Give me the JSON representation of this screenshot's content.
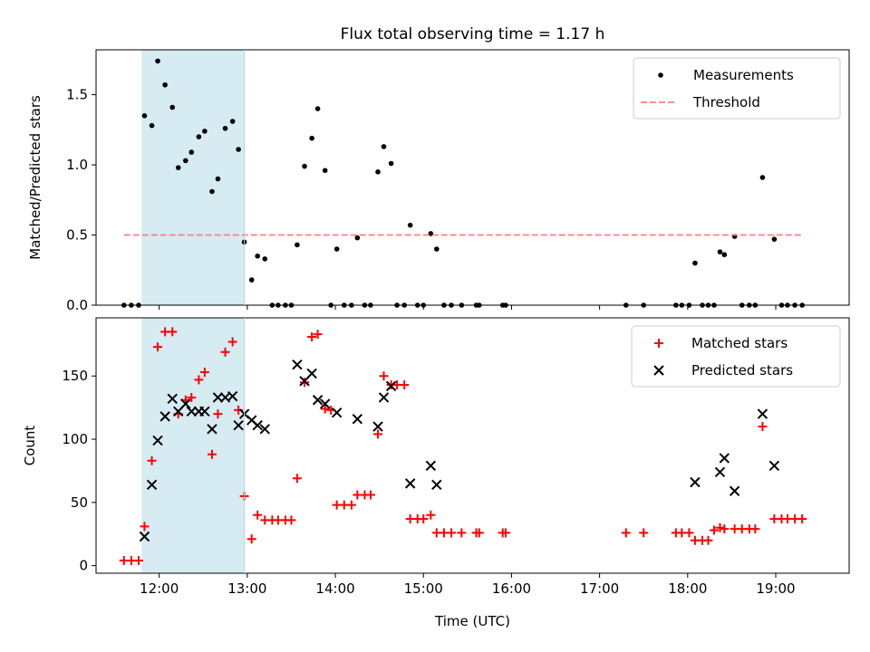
{
  "title": "Flux total observing time = 1.17 h",
  "xlabel": "Time (UTC)",
  "x_ticks": [
    "12:00",
    "13:00",
    "14:00",
    "15:00",
    "16:00",
    "17:00",
    "18:00",
    "19:00"
  ],
  "colors": {
    "measurements": "#000000",
    "threshold": "#ff7f7f",
    "matched": "#ff0000",
    "predicted": "#000000",
    "span": "#add8e6"
  },
  "chart_data": [
    {
      "type": "scatter",
      "ylabel": "Matched/Predicted stars",
      "xlim": [
        "11:17",
        "19:50"
      ],
      "ylim": [
        0,
        1.82
      ],
      "yticks": [
        "0.0",
        "0.5",
        "1.0",
        "1.5"
      ],
      "highlight_span": [
        "11:48",
        "12:58"
      ],
      "legend": {
        "position": "upper right",
        "entries": [
          "Measurements",
          "Threshold"
        ]
      },
      "series": [
        {
          "name": "Measurements",
          "marker": "dot",
          "points": [
            [
              "11:36",
              0
            ],
            [
              "11:41",
              0
            ],
            [
              "11:46",
              0
            ],
            [
              "11:50",
              1.35
            ],
            [
              "11:55",
              1.28
            ],
            [
              "11:59",
              1.74
            ],
            [
              "12:04",
              1.57
            ],
            [
              "12:09",
              1.41
            ],
            [
              "12:13",
              0.98
            ],
            [
              "12:18",
              1.03
            ],
            [
              "12:22",
              1.09
            ],
            [
              "12:27",
              1.2
            ],
            [
              "12:31",
              1.24
            ],
            [
              "12:36",
              0.81
            ],
            [
              "12:40",
              0.9
            ],
            [
              "12:45",
              1.26
            ],
            [
              "12:50",
              1.31
            ],
            [
              "12:54",
              1.11
            ],
            [
              "12:58",
              0.45
            ],
            [
              "13:03",
              0.18
            ],
            [
              "13:07",
              0.35
            ],
            [
              "13:12",
              0.33
            ],
            [
              "13:17",
              0
            ],
            [
              "13:21",
              0
            ],
            [
              "13:26",
              0
            ],
            [
              "13:30",
              0
            ],
            [
              "13:34",
              0.43
            ],
            [
              "13:39",
              0.99
            ],
            [
              "13:44",
              1.19
            ],
            [
              "13:48",
              1.4
            ],
            [
              "13:53",
              0.96
            ],
            [
              "13:57",
              0
            ],
            [
              "14:01",
              0.4
            ],
            [
              "14:06",
              0
            ],
            [
              "14:11",
              0
            ],
            [
              "14:15",
              0.48
            ],
            [
              "14:20",
              0
            ],
            [
              "14:24",
              0
            ],
            [
              "14:29",
              0.95
            ],
            [
              "14:33",
              1.13
            ],
            [
              "14:38",
              1.01
            ],
            [
              "14:42",
              0
            ],
            [
              "14:47",
              0
            ],
            [
              "14:51",
              0.57
            ],
            [
              "14:56",
              0
            ],
            [
              "15:00",
              0
            ],
            [
              "15:05",
              0.51
            ],
            [
              "15:09",
              0.4
            ],
            [
              "15:14",
              0
            ],
            [
              "15:19",
              0
            ],
            [
              "15:26",
              0
            ],
            [
              "15:36",
              0
            ],
            [
              "15:38",
              0
            ],
            [
              "15:54",
              0
            ],
            [
              "15:56",
              0
            ],
            [
              "17:18",
              0
            ],
            [
              "17:30",
              0
            ],
            [
              "17:52",
              0
            ],
            [
              "17:56",
              0
            ],
            [
              "18:01",
              0
            ],
            [
              "18:05",
              0.3
            ],
            [
              "18:10",
              0
            ],
            [
              "18:14",
              0
            ],
            [
              "18:18",
              0
            ],
            [
              "18:22",
              0.38
            ],
            [
              "18:25",
              0.36
            ],
            [
              "18:32",
              0.49
            ],
            [
              "18:37",
              0
            ],
            [
              "18:42",
              0
            ],
            [
              "18:46",
              0
            ],
            [
              "18:51",
              0.91
            ],
            [
              "18:59",
              0.47
            ],
            [
              "19:04",
              0
            ],
            [
              "19:08",
              0
            ],
            [
              "19:13",
              0
            ],
            [
              "19:18",
              0
            ]
          ]
        },
        {
          "name": "Threshold",
          "marker": "dashed-line",
          "points": [
            [
              "11:36",
              0.5
            ],
            [
              "19:18",
              0.5
            ]
          ]
        }
      ]
    },
    {
      "type": "scatter",
      "ylabel": "Count",
      "xlim": [
        "11:17",
        "19:50"
      ],
      "ylim": [
        -6,
        196
      ],
      "yticks": [
        "0",
        "50",
        "100",
        "150"
      ],
      "highlight_span": [
        "11:48",
        "12:58"
      ],
      "legend": {
        "position": "upper right",
        "entries": [
          "Matched stars",
          "Predicted stars"
        ]
      },
      "series": [
        {
          "name": "Matched stars",
          "marker": "plus",
          "points": [
            [
              "11:36",
              4
            ],
            [
              "11:41",
              4
            ],
            [
              "11:46",
              4
            ],
            [
              "11:50",
              31
            ],
            [
              "11:55",
              83
            ],
            [
              "11:59",
              173
            ],
            [
              "12:04",
              185
            ],
            [
              "12:09",
              185
            ],
            [
              "12:13",
              120
            ],
            [
              "12:18",
              131
            ],
            [
              "12:22",
              133
            ],
            [
              "12:27",
              147
            ],
            [
              "12:31",
              153
            ],
            [
              "12:36",
              88
            ],
            [
              "12:40",
              120
            ],
            [
              "12:45",
              169
            ],
            [
              "12:50",
              177
            ],
            [
              "12:54",
              123
            ],
            [
              "12:58",
              55
            ],
            [
              "13:03",
              21
            ],
            [
              "13:07",
              40
            ],
            [
              "13:12",
              36
            ],
            [
              "13:17",
              36
            ],
            [
              "13:21",
              36
            ],
            [
              "13:26",
              36
            ],
            [
              "13:30",
              36
            ],
            [
              "13:34",
              69
            ],
            [
              "13:39",
              145
            ],
            [
              "13:44",
              181
            ],
            [
              "13:48",
              183
            ],
            [
              "13:53",
              124
            ],
            [
              "13:57",
              123
            ],
            [
              "14:01",
              48
            ],
            [
              "14:06",
              48
            ],
            [
              "14:11",
              48
            ],
            [
              "14:15",
              56
            ],
            [
              "14:20",
              56
            ],
            [
              "14:24",
              56
            ],
            [
              "14:29",
              104
            ],
            [
              "14:33",
              150
            ],
            [
              "14:38",
              143
            ],
            [
              "14:42",
              143
            ],
            [
              "14:47",
              143
            ],
            [
              "14:51",
              37
            ],
            [
              "14:56",
              37
            ],
            [
              "15:00",
              37
            ],
            [
              "15:05",
              40
            ],
            [
              "15:09",
              26
            ],
            [
              "15:14",
              26
            ],
            [
              "15:19",
              26
            ],
            [
              "15:26",
              26
            ],
            [
              "15:36",
              26
            ],
            [
              "15:38",
              26
            ],
            [
              "15:54",
              26
            ],
            [
              "15:56",
              26
            ],
            [
              "17:18",
              26
            ],
            [
              "17:30",
              26
            ],
            [
              "17:52",
              26
            ],
            [
              "17:56",
              26
            ],
            [
              "18:01",
              26
            ],
            [
              "18:05",
              20
            ],
            [
              "18:10",
              20
            ],
            [
              "18:14",
              20
            ],
            [
              "18:18",
              28
            ],
            [
              "18:22",
              30
            ],
            [
              "18:25",
              29
            ],
            [
              "18:32",
              29
            ],
            [
              "18:37",
              29
            ],
            [
              "18:42",
              29
            ],
            [
              "18:46",
              29
            ],
            [
              "18:51",
              110
            ],
            [
              "18:59",
              37
            ],
            [
              "19:04",
              37
            ],
            [
              "19:08",
              37
            ],
            [
              "19:13",
              37
            ],
            [
              "19:18",
              37
            ]
          ]
        },
        {
          "name": "Predicted stars",
          "marker": "x",
          "points": [
            [
              "11:50",
              23
            ],
            [
              "11:55",
              64
            ],
            [
              "11:59",
              99
            ],
            [
              "12:04",
              118
            ],
            [
              "12:09",
              132
            ],
            [
              "12:13",
              122
            ],
            [
              "12:18",
              128
            ],
            [
              "12:22",
              122
            ],
            [
              "12:27",
              122
            ],
            [
              "12:31",
              122
            ],
            [
              "12:36",
              108
            ],
            [
              "12:40",
              133
            ],
            [
              "12:45",
              133
            ],
            [
              "12:50",
              134
            ],
            [
              "12:54",
              111
            ],
            [
              "12:58",
              120
            ],
            [
              "13:03",
              115
            ],
            [
              "13:07",
              111
            ],
            [
              "13:12",
              108
            ],
            [
              "13:34",
              159
            ],
            [
              "13:39",
              146
            ],
            [
              "13:44",
              152
            ],
            [
              "13:48",
              131
            ],
            [
              "13:53",
              128
            ],
            [
              "14:01",
              121
            ],
            [
              "14:15",
              116
            ],
            [
              "14:29",
              110
            ],
            [
              "14:33",
              133
            ],
            [
              "14:38",
              142
            ],
            [
              "14:51",
              65
            ],
            [
              "15:05",
              79
            ],
            [
              "15:09",
              64
            ],
            [
              "18:05",
              66
            ],
            [
              "18:22",
              74
            ],
            [
              "18:25",
              85
            ],
            [
              "18:32",
              59
            ],
            [
              "18:51",
              120
            ],
            [
              "18:59",
              79
            ]
          ]
        }
      ]
    }
  ]
}
